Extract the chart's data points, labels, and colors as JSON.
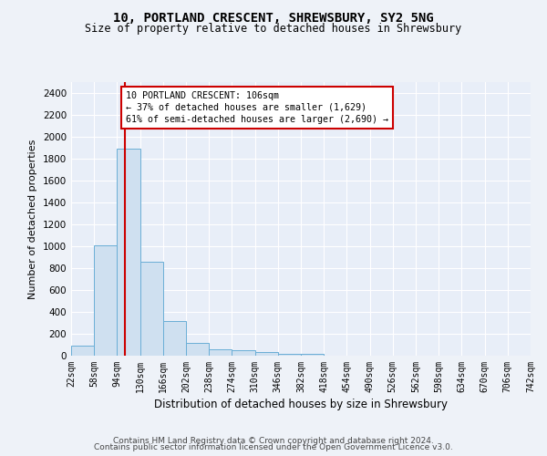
{
  "title_line1": "10, PORTLAND CRESCENT, SHREWSBURY, SY2 5NG",
  "title_line2": "Size of property relative to detached houses in Shrewsbury",
  "xlabel": "Distribution of detached houses by size in Shrewsbury",
  "ylabel": "Number of detached properties",
  "bar_color": "#cfe0f0",
  "bar_edge_color": "#6aaed6",
  "property_line_color": "#cc0000",
  "property_size": 106,
  "annotation_title": "10 PORTLAND CRESCENT: 106sqm",
  "annotation_line2": "← 37% of detached houses are smaller (1,629)",
  "annotation_line3": "61% of semi-detached houses are larger (2,690) →",
  "bin_edges": [
    22,
    58,
    94,
    130,
    166,
    202,
    238,
    274,
    310,
    346,
    382,
    418,
    454,
    490,
    526,
    562,
    598,
    634,
    670,
    706,
    742
  ],
  "bin_labels": [
    "22sqm",
    "58sqm",
    "94sqm",
    "130sqm",
    "166sqm",
    "202sqm",
    "238sqm",
    "274sqm",
    "310sqm",
    "346sqm",
    "382sqm",
    "418sqm",
    "454sqm",
    "490sqm",
    "526sqm",
    "562sqm",
    "598sqm",
    "634sqm",
    "670sqm",
    "706sqm",
    "742sqm"
  ],
  "bar_heights": [
    95,
    1010,
    1890,
    860,
    315,
    120,
    58,
    50,
    30,
    18,
    18,
    0,
    0,
    0,
    0,
    0,
    0,
    0,
    0,
    0
  ],
  "ylim": [
    0,
    2500
  ],
  "yticks": [
    0,
    200,
    400,
    600,
    800,
    1000,
    1200,
    1400,
    1600,
    1800,
    2000,
    2200,
    2400
  ],
  "footer_line1": "Contains HM Land Registry data © Crown copyright and database right 2024.",
  "footer_line2": "Contains public sector information licensed under the Open Government Licence v3.0.",
  "background_color": "#eef2f8",
  "plot_bg_color": "#e8eef8"
}
